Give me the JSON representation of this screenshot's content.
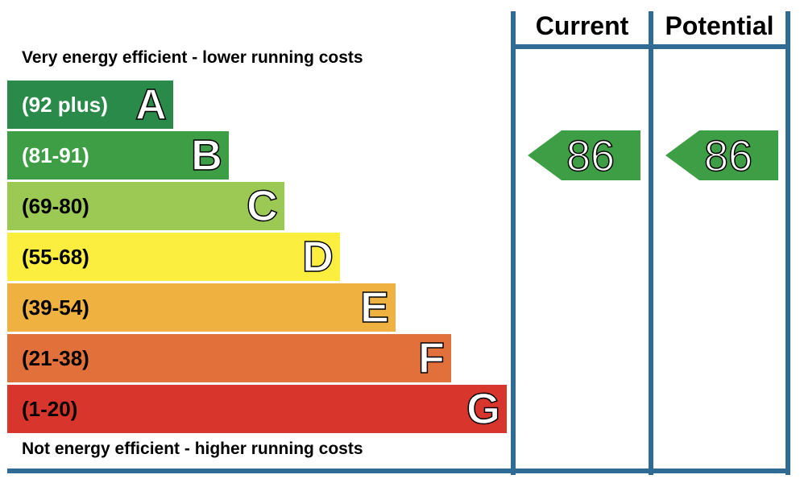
{
  "captions": {
    "top": "Very energy efficient - lower running costs",
    "bottom": "Not energy efficient - higher running costs"
  },
  "columns": {
    "current": "Current",
    "potential": "Potential"
  },
  "chart_data": {
    "type": "bar",
    "categories": [
      "A",
      "B",
      "C",
      "D",
      "E",
      "F",
      "G"
    ],
    "bands": [
      {
        "letter": "A",
        "range": "(92 plus)",
        "color": "#2a8a4a",
        "text_color": "#ffffff"
      },
      {
        "letter": "B",
        "range": "(81-91)",
        "color": "#3e9e45",
        "text_color": "#ffffff"
      },
      {
        "letter": "C",
        "range": "(69-80)",
        "color": "#9cc854",
        "text_color": "#000000"
      },
      {
        "letter": "D",
        "range": "(55-68)",
        "color": "#fbee3e",
        "text_color": "#000000"
      },
      {
        "letter": "E",
        "range": "(39-54)",
        "color": "#efb140",
        "text_color": "#000000"
      },
      {
        "letter": "F",
        "range": "(21-38)",
        "color": "#e2703a",
        "text_color": "#000000"
      },
      {
        "letter": "G",
        "range": "(1-20)",
        "color": "#d8352c",
        "text_color": "#000000"
      }
    ],
    "ratings": {
      "current": {
        "value": "86",
        "band": "B",
        "color": "#3e9e45"
      },
      "potential": {
        "value": "86",
        "band": "B",
        "color": "#3e9e45"
      }
    }
  }
}
